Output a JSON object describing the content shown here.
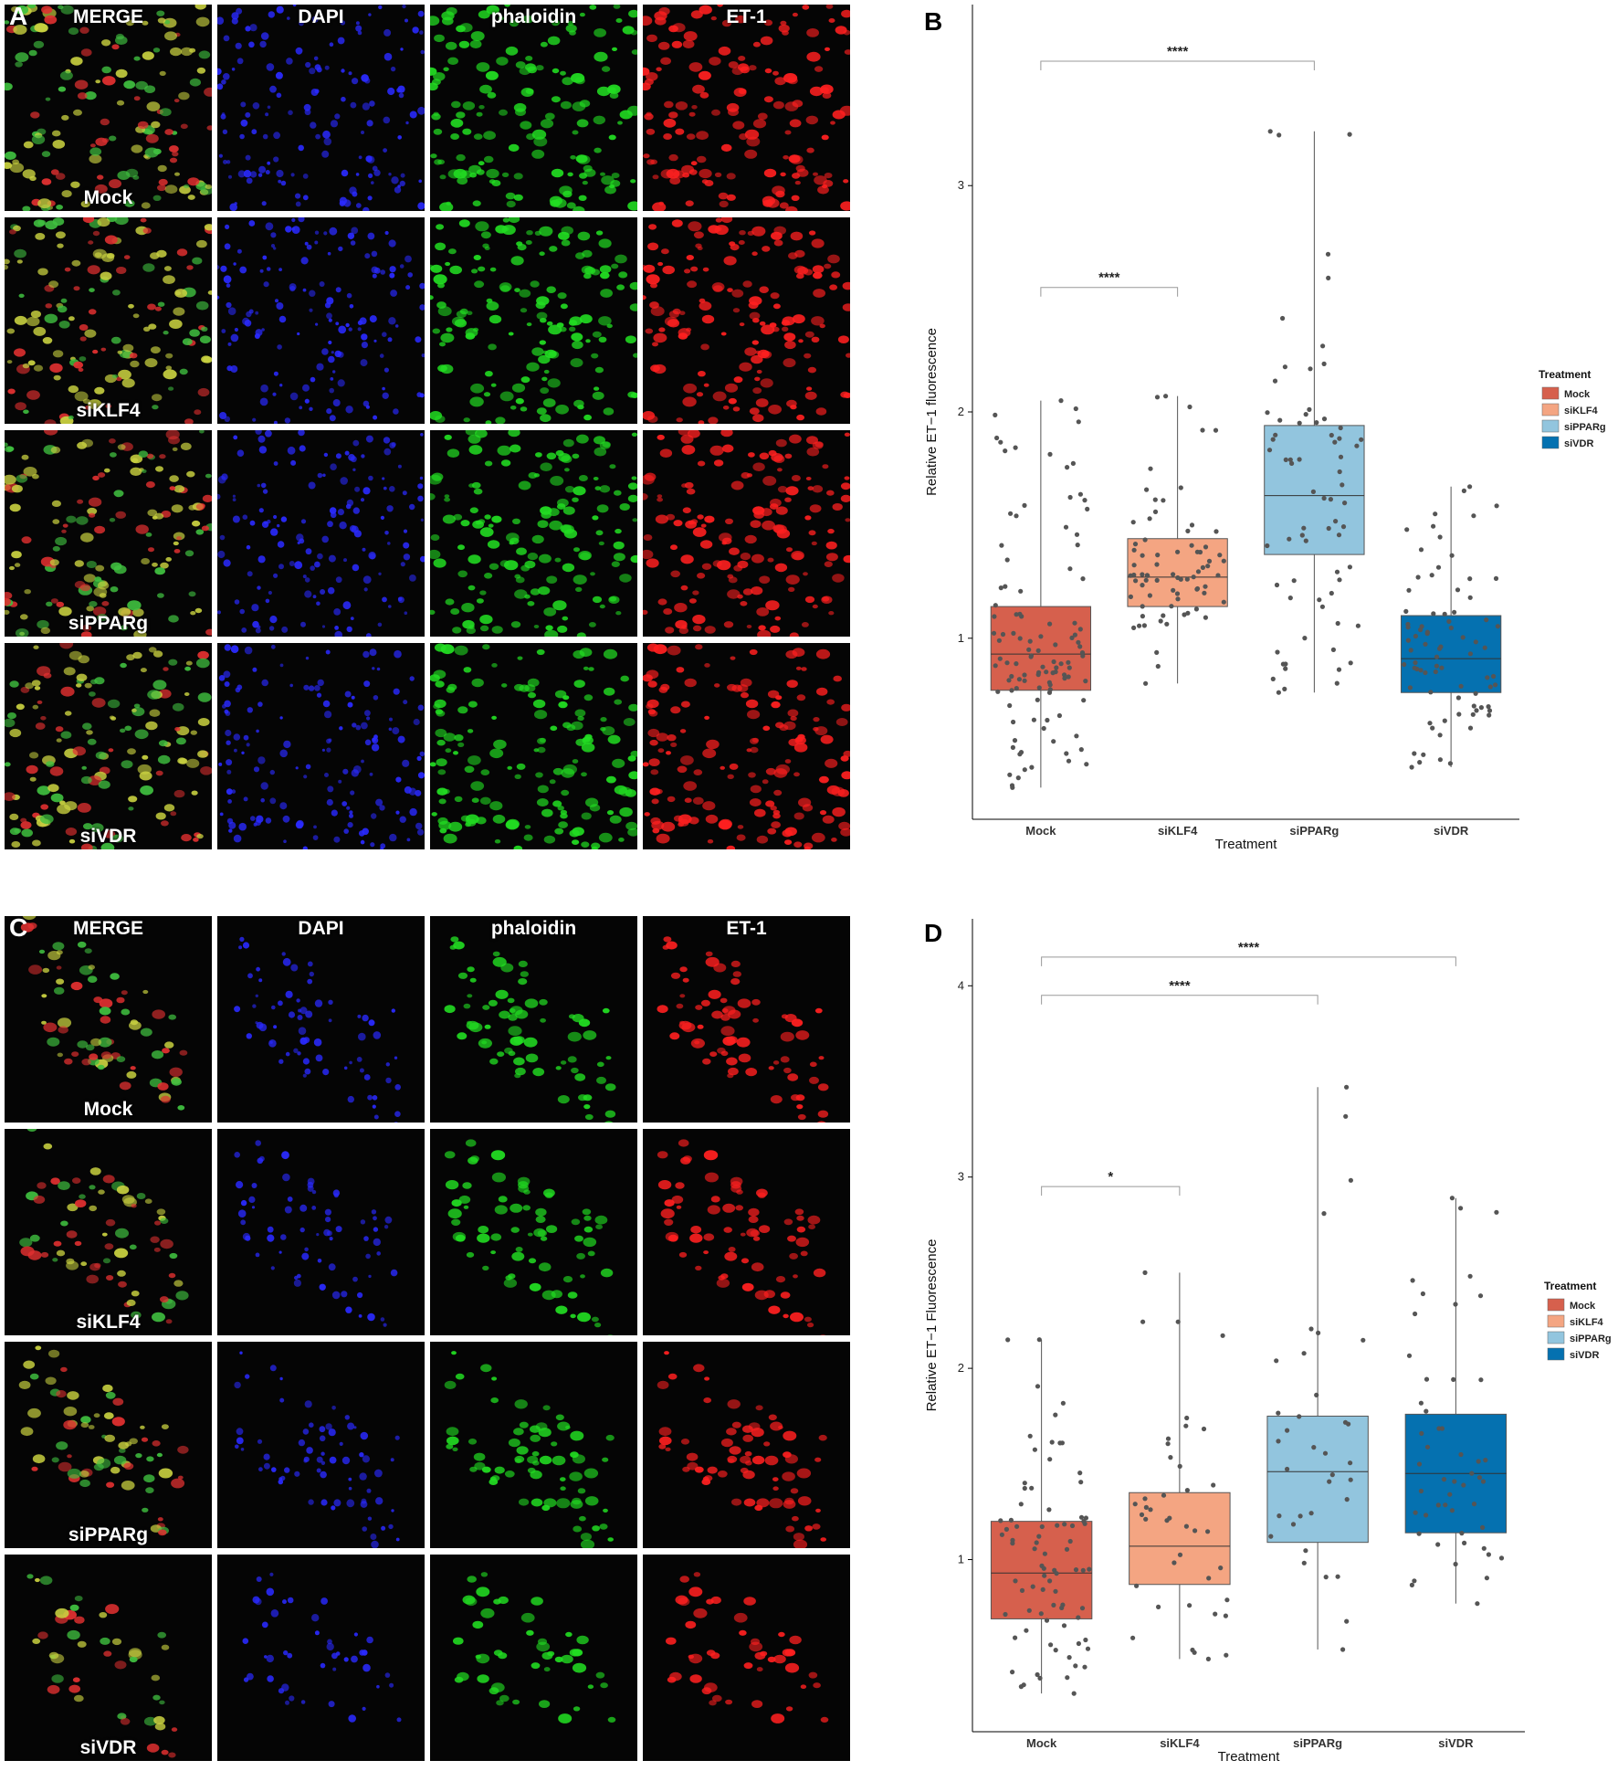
{
  "panels": {
    "a": {
      "letter": "A"
    },
    "b": {
      "letter": "B"
    },
    "c": {
      "letter": "C"
    },
    "d": {
      "letter": "D"
    }
  },
  "micrograph": {
    "channels": [
      {
        "name": "MERGE",
        "color": "#e8d060"
      },
      {
        "name": "DAPI",
        "color": "#2a2aff"
      },
      {
        "name": "phaloidin",
        "color": "#22dd22"
      },
      {
        "name": "ET-1",
        "color": "#ff2020"
      }
    ],
    "conditions": [
      "Mock",
      "siKLF4",
      "siPPARg",
      "siVDR"
    ]
  },
  "chart_data": [
    {
      "type": "box",
      "title": "",
      "xlabel": "Treatment",
      "ylabel": "Relative ET−1 fluorescence",
      "ylim": [
        0.2,
        3.8
      ],
      "yticks": [
        1,
        2,
        3
      ],
      "grid": false,
      "legend": {
        "title": "Treatment",
        "placement": "right"
      },
      "categories": [
        "Mock",
        "siKLF4",
        "siPPARg",
        "siVDR"
      ],
      "colors": [
        "#d6604d",
        "#f4a582",
        "#92c5de",
        "#0571b0"
      ],
      "boxes": [
        {
          "q1": 0.77,
          "median": 0.93,
          "q3": 1.14,
          "min": 0.34,
          "max": 2.05
        },
        {
          "q1": 1.14,
          "median": 1.27,
          "q3": 1.44,
          "min": 0.8,
          "max": 2.07
        },
        {
          "q1": 1.37,
          "median": 1.63,
          "q3": 1.94,
          "min": 0.76,
          "max": 3.24
        },
        {
          "q1": 0.76,
          "median": 0.91,
          "q3": 1.1,
          "min": 0.43,
          "max": 1.67
        }
      ],
      "points_per_group": [
        110,
        75,
        70,
        80
      ],
      "significance": [
        {
          "from": 0,
          "to": 1,
          "label": "****",
          "y": 2.55
        },
        {
          "from": 0,
          "to": 2,
          "label": "****",
          "y": 3.55
        }
      ]
    },
    {
      "type": "box",
      "title": "",
      "xlabel": "Treatment",
      "ylabel": "Relative ET−1 Fluorescence",
      "ylim": [
        0.1,
        4.35
      ],
      "yticks": [
        1,
        2,
        3,
        4
      ],
      "grid": false,
      "legend": {
        "title": "Treatment",
        "placement": "right"
      },
      "categories": [
        "Mock",
        "siKLF4",
        "siPPARg",
        "siVDR"
      ],
      "colors": [
        "#d6604d",
        "#f4a582",
        "#92c5de",
        "#0571b0"
      ],
      "boxes": [
        {
          "q1": 0.69,
          "median": 0.93,
          "q3": 1.2,
          "min": 0.3,
          "max": 2.15
        },
        {
          "q1": 0.87,
          "median": 1.07,
          "q3": 1.35,
          "min": 0.48,
          "max": 2.5
        },
        {
          "q1": 1.09,
          "median": 1.46,
          "q3": 1.75,
          "min": 0.53,
          "max": 3.47
        },
        {
          "q1": 1.14,
          "median": 1.45,
          "q3": 1.76,
          "min": 0.77,
          "max": 2.89
        }
      ],
      "points_per_group": [
        80,
        40,
        35,
        50
      ],
      "significance": [
        {
          "from": 0,
          "to": 1,
          "label": "*",
          "y": 2.95
        },
        {
          "from": 0,
          "to": 2,
          "label": "****",
          "y": 3.95
        },
        {
          "from": 0,
          "to": 3,
          "label": "****",
          "y": 4.15
        }
      ]
    }
  ]
}
